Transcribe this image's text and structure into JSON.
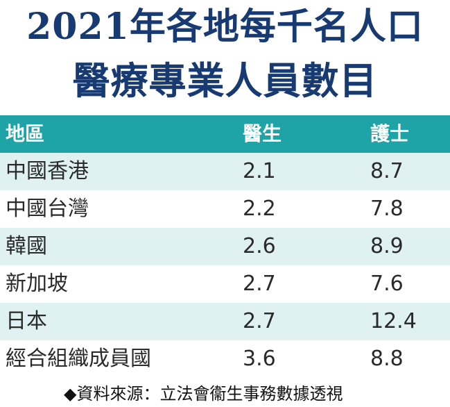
{
  "title": {
    "line1": "2021年各地每千名人口",
    "line2": "醫療專業人員數目"
  },
  "table": {
    "headers": [
      "地區",
      "醫生",
      "護士"
    ],
    "rows": [
      [
        "中國香港",
        "2.1",
        "8.7"
      ],
      [
        "中國台灣",
        "2.2",
        "7.8"
      ],
      [
        "韓國",
        "2.6",
        "8.9"
      ],
      [
        "新加坡",
        "2.7",
        "7.6"
      ],
      [
        "日本",
        "2.7",
        "12.4"
      ],
      [
        "經合組織成員國",
        "3.6",
        "8.8"
      ]
    ]
  },
  "source": "◆資料來源：立法會衞生事務數據透視",
  "colors": {
    "title": "#173a73",
    "header_bg": "#1ea4a6",
    "alt_row_bg": "#dff1f1",
    "text": "#2a2a2a"
  }
}
